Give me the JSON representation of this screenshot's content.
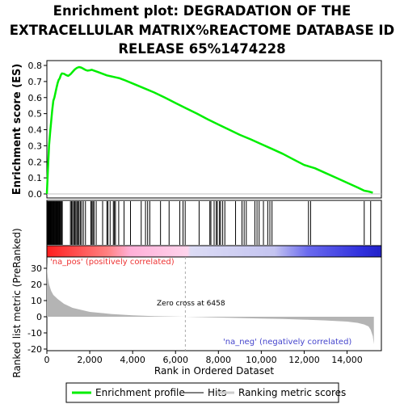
{
  "chart_data": {
    "title_lines": [
      "Enrichment plot: DEGRADATION OF THE",
      "EXTRACELLULAR MATRIX%REACTOME DATABASE ID",
      "RELEASE 65%1474228"
    ],
    "type": "line",
    "es_panel": {
      "ylabel": "Enrichment score (ES)",
      "ylim": [
        0.0,
        0.82
      ],
      "yticks": [
        "0.0",
        "0.1",
        "0.2",
        "0.3",
        "0.4",
        "0.5",
        "0.6",
        "0.7",
        "0.8"
      ],
      "series": [
        {
          "name": "Enrichment profile",
          "color": "#00ee00",
          "x": [
            0,
            50,
            100,
            150,
            200,
            250,
            300,
            350,
            400,
            450,
            500,
            550,
            600,
            650,
            700,
            800,
            900,
            1000,
            1100,
            1200,
            1300,
            1400,
            1500,
            1600,
            1700,
            1800,
            1900,
            2000,
            2100,
            2200,
            2400,
            2600,
            2800,
            3000,
            3200,
            3400,
            3600,
            4000,
            4500,
            5000,
            5500,
            6000,
            6500,
            7000,
            7500,
            8000,
            8500,
            9000,
            9500,
            10000,
            10500,
            11000,
            11500,
            12000,
            12500,
            13000,
            13500,
            14000,
            14500,
            14800,
            15000,
            15200
          ],
          "y": [
            0.0,
            0.15,
            0.3,
            0.38,
            0.45,
            0.52,
            0.58,
            0.6,
            0.63,
            0.66,
            0.69,
            0.71,
            0.72,
            0.74,
            0.75,
            0.748,
            0.74,
            0.735,
            0.745,
            0.76,
            0.775,
            0.785,
            0.79,
            0.787,
            0.78,
            0.772,
            0.768,
            0.77,
            0.773,
            0.768,
            0.758,
            0.748,
            0.738,
            0.732,
            0.726,
            0.72,
            0.71,
            0.688,
            0.66,
            0.632,
            0.6,
            0.566,
            0.533,
            0.5,
            0.465,
            0.432,
            0.4,
            0.368,
            0.34,
            0.31,
            0.28,
            0.25,
            0.215,
            0.18,
            0.16,
            0.13,
            0.1,
            0.07,
            0.04,
            0.02,
            0.015,
            0.008
          ]
        }
      ]
    },
    "hits": [
      10,
      40,
      70,
      90,
      110,
      130,
      150,
      170,
      190,
      210,
      240,
      270,
      300,
      330,
      360,
      390,
      420,
      450,
      480,
      510,
      540,
      570,
      600,
      640,
      680,
      720,
      1100,
      1150,
      1200,
      1250,
      1300,
      1350,
      1400,
      1450,
      1500,
      1560,
      1620,
      1700,
      1800,
      2050,
      2100,
      2150,
      2200,
      2300,
      2600,
      2800,
      2850,
      2950,
      3100,
      3150,
      3200,
      3350,
      3600,
      3900,
      4400,
      4600,
      4700,
      4800,
      5300,
      5700,
      6200,
      6350,
      6450,
      7100,
      7600,
      7650,
      7800,
      7900,
      7950,
      8050,
      8100,
      8200,
      8300,
      8800,
      9100,
      9200,
      9300,
      9700,
      9800,
      9900,
      10100,
      10300,
      10400,
      10500,
      12200,
      12300,
      14800,
      15100
    ],
    "rank_panel": {
      "ylabel": "Ranked list metric (PreRanked)",
      "xlabel": "Rank in Ordered Dataset",
      "ylim": [
        -20,
        36
      ],
      "yticks": [
        "-20",
        "-10",
        "0",
        "10",
        "20",
        "30"
      ],
      "xlim": [
        0,
        15600
      ],
      "xticks": [
        "0",
        "2,000",
        "4,000",
        "6,000",
        "8,000",
        "10,000",
        "12,000",
        "14,000"
      ],
      "metric_x": [
        0,
        20,
        50,
        100,
        200,
        300,
        500,
        800,
        1200,
        2000,
        3000,
        4000,
        5000,
        6000,
        6458,
        7000,
        8000,
        9000,
        10000,
        11000,
        12000,
        13000,
        14000,
        14500,
        14800,
        15000,
        15100,
        15200,
        15250
      ],
      "metric_y": [
        34,
        28,
        24,
        20,
        16,
        13.5,
        11,
        8,
        5.5,
        3,
        1.7,
        0.9,
        0.4,
        0.1,
        0,
        -0.2,
        -0.5,
        -0.8,
        -1.1,
        -1.4,
        -1.8,
        -2.3,
        -3.0,
        -3.8,
        -4.8,
        -6,
        -8,
        -12,
        -17
      ],
      "zero_cross_label": "Zero cross at 6458",
      "zero_cross": 6458,
      "pos_label": "'na_pos' (positively correlated)",
      "neg_label": "'na_neg' (negatively correlated)",
      "pos_color": "#ff2222",
      "neg_color": "#4444ff"
    },
    "legend": [
      "Enrichment profile",
      "Hits",
      "Ranking metric scores"
    ]
  }
}
